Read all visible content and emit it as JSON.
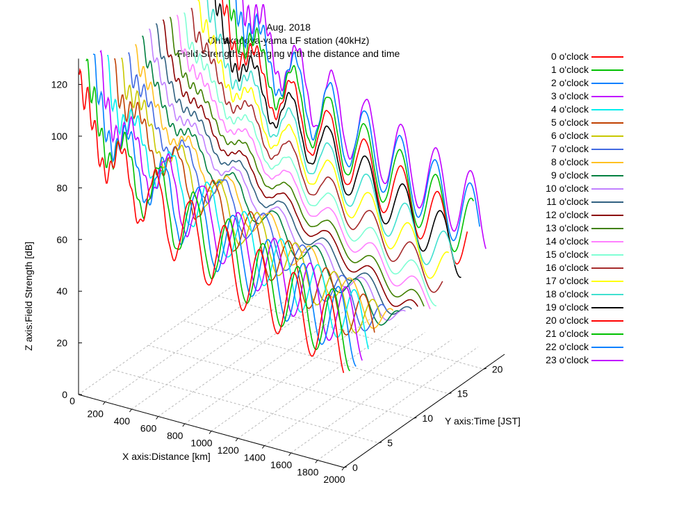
{
  "chart_data": {
    "type": "line",
    "title_lines": [
      "Aug. 2018",
      "Ohtakadoya-yama LF station (40kHz)",
      "Field Strengths changing with the distance and time"
    ],
    "xlabel": "X axis:Distance [km]",
    "ylabel": "Y axis:Time [JST]",
    "zlabel": "Z axis:Field Strength [dB]",
    "xlim": [
      0,
      2000
    ],
    "ylim": [
      0,
      23
    ],
    "zlim": [
      0,
      130
    ],
    "x_ticks": [
      "200",
      "400",
      "600",
      "800",
      "1000",
      "1200",
      "1400",
      "1600",
      "1800",
      "2000"
    ],
    "y_ticks": [
      "0",
      "5",
      "10",
      "15",
      "20"
    ],
    "z_ticks": [
      "0",
      "20",
      "40",
      "60",
      "80",
      "100",
      "120"
    ],
    "grid": true,
    "legend_position": "right",
    "series": [
      {
        "name": "0 o'clock",
        "hour": 0,
        "color": "#ff0000"
      },
      {
        "name": "1 o'clock",
        "hour": 1,
        "color": "#00c000"
      },
      {
        "name": "2 o'clock",
        "hour": 2,
        "color": "#0080ff"
      },
      {
        "name": "3 o'clock",
        "hour": 3,
        "color": "#c000ff"
      },
      {
        "name": "4 o'clock",
        "hour": 4,
        "color": "#00eeee"
      },
      {
        "name": "5 o'clock",
        "hour": 5,
        "color": "#c04000"
      },
      {
        "name": "6 o'clock",
        "hour": 6,
        "color": "#c8c800"
      },
      {
        "name": "7 o'clock",
        "hour": 7,
        "color": "#4169e1"
      },
      {
        "name": "8 o'clock",
        "hour": 8,
        "color": "#ffc020"
      },
      {
        "name": "9 o'clock",
        "hour": 9,
        "color": "#008040"
      },
      {
        "name": "10 o'clock",
        "hour": 10,
        "color": "#c080ff"
      },
      {
        "name": "11 o'clock",
        "hour": 11,
        "color": "#306080"
      },
      {
        "name": "12 o'clock",
        "hour": 12,
        "color": "#8b0000"
      },
      {
        "name": "13 o'clock",
        "hour": 13,
        "color": "#408000"
      },
      {
        "name": "14 o'clock",
        "hour": 14,
        "color": "#ff80ff"
      },
      {
        "name": "15 o'clock",
        "hour": 15,
        "color": "#7fffd4"
      },
      {
        "name": "16 o'clock",
        "hour": 16,
        "color": "#a52a2a"
      },
      {
        "name": "17 o'clock",
        "hour": 17,
        "color": "#ffff00"
      },
      {
        "name": "18 o'clock",
        "hour": 18,
        "color": "#40e0d0"
      },
      {
        "name": "19 o'clock",
        "hour": 19,
        "color": "#000000"
      },
      {
        "name": "20 o'clock",
        "hour": 20,
        "color": "#ff0000"
      },
      {
        "name": "21 o'clock",
        "hour": 21,
        "color": "#00c000"
      },
      {
        "name": "22 o'clock",
        "hour": 22,
        "color": "#0080ff"
      },
      {
        "name": "23 o'clock",
        "hour": 23,
        "color": "#c000ff"
      }
    ]
  }
}
